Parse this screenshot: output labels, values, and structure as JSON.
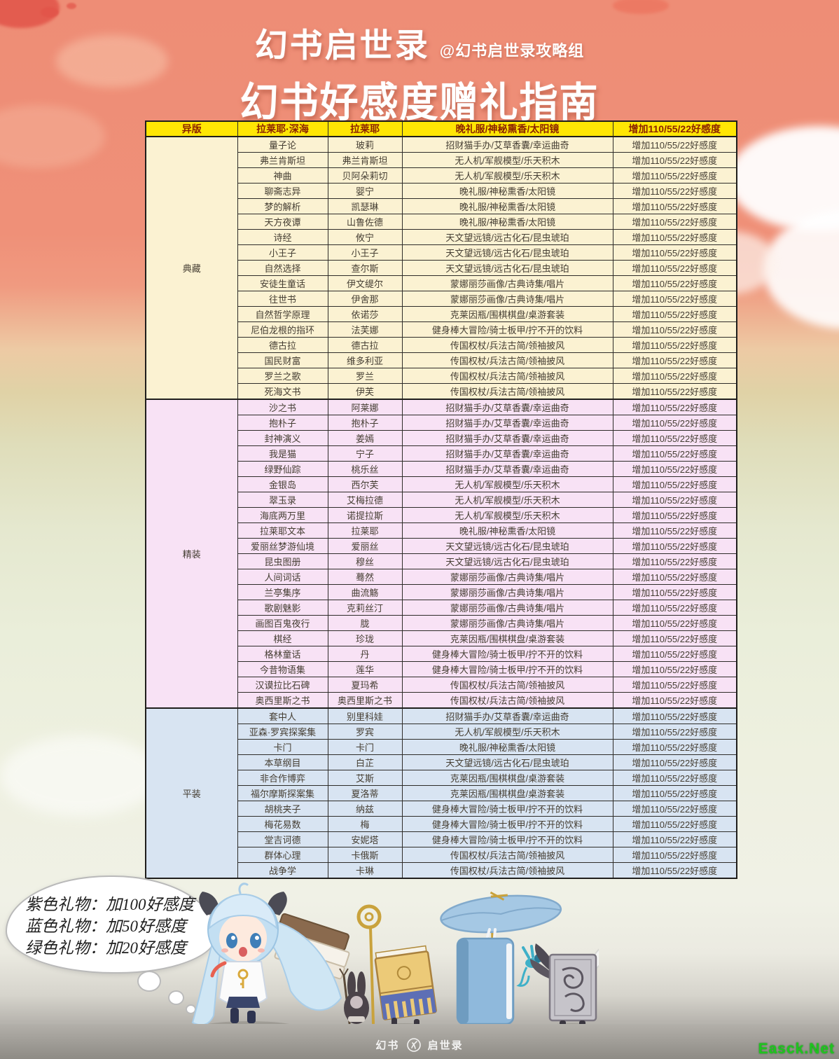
{
  "header": {
    "game_title": "幻书启世录",
    "credit": "@幻书启世录攻略组",
    "subtitle": "幻书好感度赠礼指南"
  },
  "table": {
    "columns": [
      "异版",
      "拉莱耶·深海",
      "拉莱耶",
      "晚礼服/神秘熏香/太阳镜",
      "增加110/55/22好感度"
    ],
    "effect_label": "增加110/55/22好感度",
    "sections": [
      {
        "label": "典藏",
        "color": "#fbf2d2",
        "rows": [
          [
            "量子论",
            "玻莉",
            "招财猫手办/艾草香囊/幸运曲奇"
          ],
          [
            "弗兰肯斯坦",
            "弗兰肯斯坦",
            "无人机/军舰模型/乐天积木"
          ],
          [
            "神曲",
            "贝阿朵莉切",
            "无人机/军舰模型/乐天积木"
          ],
          [
            "聊斋志异",
            "婴宁",
            "晚礼服/神秘熏香/太阳镜"
          ],
          [
            "梦的解析",
            "凯瑟琳",
            "晚礼服/神秘熏香/太阳镜"
          ],
          [
            "天方夜谭",
            "山鲁佐德",
            "晚礼服/神秘熏香/太阳镜"
          ],
          [
            "诗经",
            "攸宁",
            "天文望远镜/远古化石/昆虫琥珀"
          ],
          [
            "小王子",
            "小王子",
            "天文望远镜/远古化石/昆虫琥珀"
          ],
          [
            "自然选择",
            "查尔斯",
            "天文望远镜/远古化石/昆虫琥珀"
          ],
          [
            "安徒生童话",
            "伊文缇尔",
            "蒙娜丽莎画像/古典诗集/唱片"
          ],
          [
            "往世书",
            "伊舍那",
            "蒙娜丽莎画像/古典诗集/唱片"
          ],
          [
            "自然哲学原理",
            "依诺莎",
            "克莱因瓶/围棋棋盘/桌游套装"
          ],
          [
            "尼伯龙根的指环",
            "法芙娜",
            "健身棒大冒险/骑士板甲/拧不开的饮料"
          ],
          [
            "德古拉",
            "德古拉",
            "传国权杖/兵法古简/领袖披风"
          ],
          [
            "国民财富",
            "维多利亚",
            "传国权杖/兵法古简/领袖披风"
          ],
          [
            "罗兰之歌",
            "罗兰",
            "传国权杖/兵法古简/领袖披风"
          ],
          [
            "死海文书",
            "伊芙",
            "传国权杖/兵法古简/领袖披风"
          ]
        ]
      },
      {
        "label": "精装",
        "color": "#f8e2f5",
        "rows": [
          [
            "沙之书",
            "阿莱娜",
            "招财猫手办/艾草香囊/幸运曲奇"
          ],
          [
            "抱朴子",
            "抱朴子",
            "招财猫手办/艾草香囊/幸运曲奇"
          ],
          [
            "封神演义",
            "姜嫣",
            "招财猫手办/艾草香囊/幸运曲奇"
          ],
          [
            "我是猫",
            "宁子",
            "招财猫手办/艾草香囊/幸运曲奇"
          ],
          [
            "绿野仙踪",
            "桃乐丝",
            "招财猫手办/艾草香囊/幸运曲奇"
          ],
          [
            "金银岛",
            "西尔芙",
            "无人机/军舰模型/乐天积木"
          ],
          [
            "翠玉录",
            "艾梅拉德",
            "无人机/军舰模型/乐天积木"
          ],
          [
            "海底两万里",
            "诺提拉斯",
            "无人机/军舰模型/乐天积木"
          ],
          [
            "拉莱耶文本",
            "拉莱耶",
            "晚礼服/神秘熏香/太阳镜"
          ],
          [
            "爱丽丝梦游仙境",
            "爱丽丝",
            "天文望远镜/远古化石/昆虫琥珀"
          ],
          [
            "昆虫图册",
            "穆丝",
            "天文望远镜/远古化石/昆虫琥珀"
          ],
          [
            "人间词话",
            "蓦然",
            "蒙娜丽莎画像/古典诗集/唱片"
          ],
          [
            "兰亭集序",
            "曲流觞",
            "蒙娜丽莎画像/古典诗集/唱片"
          ],
          [
            "歌剧魅影",
            "克莉丝汀",
            "蒙娜丽莎画像/古典诗集/唱片"
          ],
          [
            "画图百鬼夜行",
            "胧",
            "蒙娜丽莎画像/古典诗集/唱片"
          ],
          [
            "棋经",
            "珍珑",
            "克莱因瓶/围棋棋盘/桌游套装"
          ],
          [
            "格林童话",
            "丹",
            "健身棒大冒险/骑士板甲/拧不开的饮料"
          ],
          [
            "今昔物语集",
            "莲华",
            "健身棒大冒险/骑士板甲/拧不开的饮料"
          ],
          [
            "汉谟拉比石碑",
            "夏玛希",
            "传国权杖/兵法古简/领袖披风"
          ],
          [
            "奥西里斯之书",
            "奥西里斯之书",
            "传国权杖/兵法古简/领袖披风"
          ]
        ]
      },
      {
        "label": "平装",
        "color": "#d8e4f2",
        "rows": [
          [
            "套中人",
            "别里科娃",
            "招财猫手办/艾草香囊/幸运曲奇"
          ],
          [
            "亚森·罗宾探案集",
            "罗宾",
            "无人机/军舰模型/乐天积木"
          ],
          [
            "卡门",
            "卡门",
            "晚礼服/神秘熏香/太阳镜"
          ],
          [
            "本草纲目",
            "白芷",
            "天文望远镜/远古化石/昆虫琥珀"
          ],
          [
            "非合作博弈",
            "艾斯",
            "克莱因瓶/围棋棋盘/桌游套装"
          ],
          [
            "福尔摩斯探案集",
            "夏洛蒂",
            "克莱因瓶/围棋棋盘/桌游套装"
          ],
          [
            "胡桃夹子",
            "纳兹",
            "健身棒大冒险/骑士板甲/拧不开的饮料"
          ],
          [
            "梅花易数",
            "梅",
            "健身棒大冒险/骑士板甲/拧不开的饮料"
          ],
          [
            "堂吉诃德",
            "安妮塔",
            "健身棒大冒险/骑士板甲/拧不开的饮料"
          ],
          [
            "群体心理",
            "卡俄斯",
            "传国权杖/兵法古简/领袖披风"
          ],
          [
            "战争学",
            "卡琳",
            "传国权杖/兵法古简/领袖披风"
          ]
        ]
      }
    ]
  },
  "note_bubble": {
    "lines": [
      "紫色礼物：加100好感度",
      "蓝色礼物：加50好感度",
      "绿色礼物：加20好感度"
    ]
  },
  "footer": {
    "logo_left": "幻书",
    "logo_right": "启世录",
    "watermark": "Easck.Net"
  },
  "colors": {
    "sky_salmon": "#ee8d76",
    "header_yellow": "#ffe604",
    "header_text": "#8b2300",
    "section_collection": "#fbf2d2",
    "section_deluxe": "#f8e2f5",
    "section_paperback": "#d8e4f2",
    "watermark_green": "#1fc41f"
  }
}
